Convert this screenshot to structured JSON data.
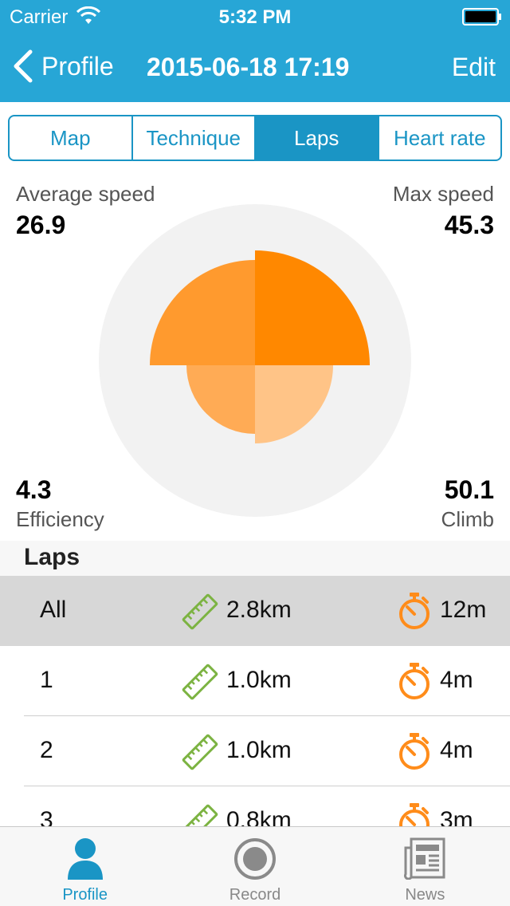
{
  "status_bar": {
    "carrier": "Carrier",
    "time": "5:32 PM"
  },
  "nav": {
    "back_label": "Profile",
    "title": "2015-06-18 17:19",
    "edit_label": "Edit"
  },
  "tabs": [
    {
      "label": "Map",
      "active": false
    },
    {
      "label": "Technique",
      "active": false
    },
    {
      "label": "Laps",
      "active": true
    },
    {
      "label": "Heart rate",
      "active": false
    }
  ],
  "stats": {
    "average_speed": {
      "label": "Average speed",
      "value": "26.9"
    },
    "max_speed": {
      "label": "Max speed",
      "value": "45.3"
    },
    "efficiency": {
      "label": "Efficiency",
      "value": "4.3"
    },
    "climb": {
      "label": "Climb",
      "value": "50.1"
    }
  },
  "laps": {
    "title": "Laps",
    "rows": [
      {
        "name": "All",
        "distance": "2.8km",
        "time": "12m"
      },
      {
        "name": "1",
        "distance": "1.0km",
        "time": "4m"
      },
      {
        "name": "2",
        "distance": "1.0km",
        "time": "4m"
      },
      {
        "name": "3",
        "distance": "0.8km",
        "time": "3m"
      }
    ]
  },
  "tab_bar": [
    {
      "label": "Profile",
      "icon": "person-icon",
      "active": true
    },
    {
      "label": "Record",
      "icon": "record-icon",
      "active": false
    },
    {
      "label": "News",
      "icon": "newspaper-icon",
      "active": false
    }
  ],
  "colors": {
    "header": "#27a6d6",
    "accent": "#1a95c5",
    "segment_top_right": "#ff8800",
    "segment_top_left": "#ff9a2e",
    "segment_bottom_left": "#ffab55",
    "segment_bottom_right": "#ffc487",
    "ruler": "#7cb342",
    "stopwatch": "#ff8c1a"
  }
}
